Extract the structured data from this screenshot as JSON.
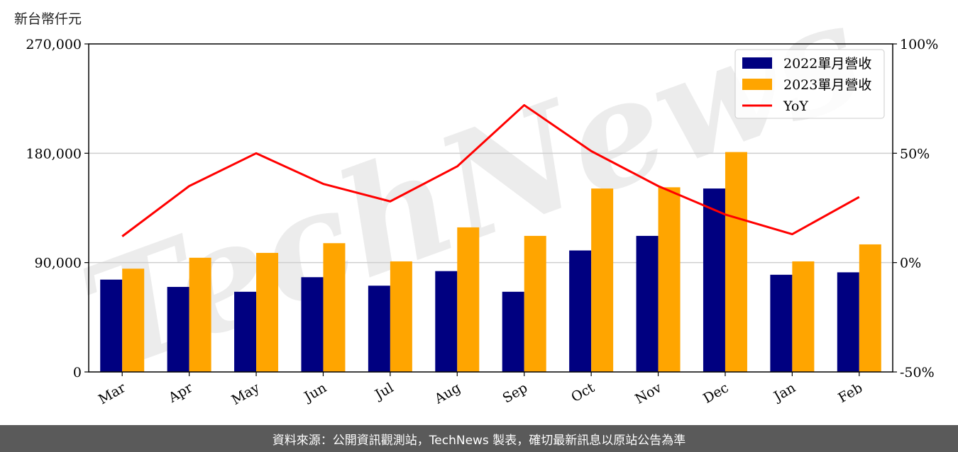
{
  "chart_data": {
    "type": "bar",
    "unit_label": "新台幣仟元",
    "categories": [
      "Mar",
      "Apr",
      "May",
      "Jun",
      "Jul",
      "Aug",
      "Sep",
      "Oct",
      "Nov",
      "Dec",
      "Jan",
      "Feb"
    ],
    "series": [
      {
        "name": "2022單月營收",
        "type": "bar",
        "color": "#000080",
        "values": [
          76000,
          70000,
          66000,
          78000,
          71000,
          83000,
          66000,
          100000,
          112000,
          151000,
          80000,
          82000
        ]
      },
      {
        "name": "2023單月營收",
        "type": "bar",
        "color": "#ffa500",
        "values": [
          85000,
          94000,
          98000,
          106000,
          91000,
          119000,
          112000,
          151000,
          152000,
          181000,
          91000,
          105000
        ]
      },
      {
        "name": "YoY",
        "type": "line",
        "axis": "right",
        "color": "#ff0000",
        "values": [
          12,
          35,
          50,
          36,
          28,
          44,
          72,
          51,
          35,
          22,
          13,
          30
        ]
      }
    ],
    "y_left": {
      "lim": [
        0,
        270000
      ],
      "ticks": [
        0,
        90000,
        180000,
        270000
      ],
      "tick_labels": [
        "0",
        "90,000",
        "180,000",
        "270,000"
      ]
    },
    "y_right": {
      "lim": [
        -50,
        100
      ],
      "ticks": [
        -50,
        0,
        50,
        100
      ],
      "tick_labels": [
        "-50%",
        "0%",
        "50%",
        "100%"
      ]
    },
    "grid": "horizontal",
    "legend": "top-right"
  },
  "watermark": "TechNews",
  "footer": "資料來源：公開資訊觀測站，TechNews 製表，確切最新訊息以原站公告為準"
}
